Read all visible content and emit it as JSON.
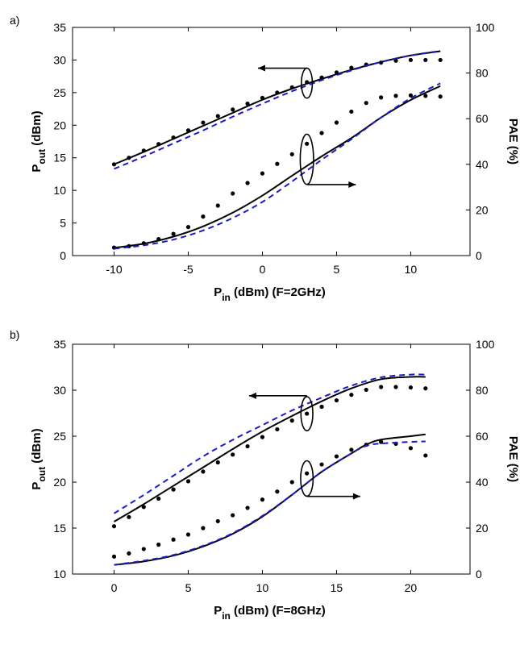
{
  "chart_data": [
    {
      "type": "line",
      "panel_label": "a)",
      "xlabel": {
        "main": "P",
        "sub": "in",
        "rest": " (dBm) (F=2GHz)"
      },
      "ylabel_left": {
        "main": "P",
        "sub": "out",
        "rest": " (dBm)"
      },
      "ylabel_right": "PAE (%)",
      "xlim": [
        -12.8,
        14
      ],
      "ylim_left": [
        0,
        35
      ],
      "ylim_right": [
        0,
        100
      ],
      "xticks": [
        -10,
        -5,
        0,
        5,
        10
      ],
      "yticks_left": [
        0,
        5,
        10,
        15,
        20,
        25,
        30,
        35
      ],
      "yticks_right": [
        0,
        20,
        40,
        60,
        80,
        100
      ],
      "grid": false,
      "series": [
        {
          "name": "Pout measured",
          "axis": "left",
          "style": "dots",
          "x": [
            -10,
            -9,
            -8,
            -7,
            -6,
            -5,
            -4,
            -3,
            -2,
            -1,
            0,
            1,
            2,
            3,
            4,
            5,
            6,
            7,
            8,
            9,
            10,
            11,
            12
          ],
          "y": [
            14.0,
            15.0,
            16.1,
            17.1,
            18.1,
            19.2,
            20.4,
            21.4,
            22.4,
            23.3,
            24.2,
            25.0,
            25.8,
            26.6,
            27.3,
            28.1,
            28.8,
            29.3,
            29.6,
            29.9,
            30.0,
            30.0,
            30.0
          ]
        },
        {
          "name": "Pout model (solid)",
          "axis": "left",
          "style": "solid",
          "x": [
            -10,
            -8,
            -6,
            -4,
            -2,
            0,
            2,
            4,
            6,
            8,
            10,
            12
          ],
          "y": [
            14.0,
            15.9,
            17.9,
            19.9,
            21.9,
            23.9,
            25.6,
            27.1,
            28.5,
            29.7,
            30.7,
            31.35
          ]
        },
        {
          "name": "Pout model (dashed)",
          "axis": "left",
          "style": "dashed",
          "x": [
            -10,
            -8,
            -6,
            -4,
            -2,
            0,
            2,
            4,
            6,
            8,
            10,
            12
          ],
          "y": [
            13.3,
            15.2,
            17.2,
            19.2,
            21.3,
            23.3,
            25.2,
            26.9,
            28.4,
            29.7,
            30.7,
            31.4
          ]
        },
        {
          "name": "PAE measured",
          "axis": "right",
          "style": "dots",
          "x": [
            -10,
            -9,
            -8,
            -7,
            -6,
            -5,
            -4,
            -3,
            -2,
            -1,
            0,
            1,
            2,
            3,
            4,
            5,
            6,
            7,
            8,
            9,
            10,
            11,
            12
          ],
          "y": [
            3.5,
            4.1,
            5.4,
            7.2,
            9.5,
            12.5,
            17.1,
            21.9,
            27.2,
            31.8,
            36.0,
            40.2,
            44.4,
            49.0,
            53.7,
            58.3,
            63.1,
            66.9,
            69.3,
            70.0,
            70.2,
            70.0,
            69.7
          ]
        },
        {
          "name": "PAE model (solid)",
          "axis": "right",
          "style": "solid",
          "x": [
            -10,
            -8,
            -6,
            -4,
            -2,
            0,
            2,
            4,
            6,
            8,
            10,
            12
          ],
          "y": [
            3.4,
            5.2,
            8.3,
            12.8,
            18.8,
            26.3,
            35.0,
            43.5,
            51.5,
            60.5,
            68.2,
            74.3
          ]
        },
        {
          "name": "PAE model (dashed)",
          "axis": "right",
          "style": "dashed",
          "x": [
            -10,
            -8,
            -6,
            -4,
            -2,
            0,
            2,
            4,
            6,
            8,
            10,
            12
          ],
          "y": [
            3.0,
            4.5,
            7.0,
            11.0,
            16.5,
            23.5,
            32.5,
            42.0,
            51.0,
            60.5,
            69.0,
            75.5
          ]
        }
      ],
      "annotations": [
        {
          "axis": "left",
          "ellipse": {
            "cx": 3,
            "cy": 26.45,
            "rx": 0.37,
            "ry": 2.3
          },
          "arrow": {
            "from": [
              3,
              28.75
            ],
            "to": [
              -0.3,
              28.75
            ]
          }
        },
        {
          "axis": "right",
          "ellipse": {
            "cx": 3,
            "cy": 42.2,
            "rx": 0.45,
            "ry": 11
          },
          "arrow": {
            "from": [
              3,
              31.1
            ],
            "to": [
              6.3,
              31.1
            ]
          }
        }
      ]
    },
    {
      "type": "line",
      "panel_label": "b)",
      "xlabel": {
        "main": "P",
        "sub": "in",
        "rest": " (dBm) (F=8GHz)"
      },
      "ylabel_left": {
        "main": "P",
        "sub": "out",
        "rest": " (dBm)"
      },
      "ylabel_right": "PAE (%)",
      "xlim": [
        -2.8,
        24
      ],
      "ylim_left": [
        10,
        35
      ],
      "ylim_right": [
        0,
        100
      ],
      "xticks": [
        0,
        5,
        10,
        15,
        20
      ],
      "yticks_left": [
        10,
        15,
        20,
        25,
        30,
        35
      ],
      "yticks_right": [
        0,
        20,
        40,
        60,
        80,
        100
      ],
      "grid": false,
      "series": [
        {
          "name": "Pout measured",
          "axis": "left",
          "style": "dots",
          "x": [
            0,
            1,
            2,
            3,
            4,
            5,
            6,
            7,
            8,
            9,
            10,
            11,
            12,
            13,
            14,
            15,
            16,
            17,
            18,
            19,
            20,
            21
          ],
          "y": [
            15.2,
            16.2,
            17.3,
            18.2,
            19.2,
            20.1,
            21.15,
            22.15,
            23.0,
            23.9,
            24.9,
            25.75,
            26.7,
            27.45,
            28.2,
            28.9,
            29.5,
            30.05,
            30.35,
            30.35,
            30.3,
            30.2
          ]
        },
        {
          "name": "Pout model (solid)",
          "axis": "left",
          "style": "solid",
          "x": [
            0,
            2,
            4,
            6,
            8,
            10,
            12,
            14,
            16,
            18,
            20,
            21
          ],
          "y": [
            15.7,
            17.6,
            19.6,
            21.6,
            23.6,
            25.5,
            27.2,
            28.8,
            30.2,
            31.2,
            31.45,
            31.45
          ]
        },
        {
          "name": "Pout model (dashed)",
          "axis": "left",
          "style": "dashed",
          "x": [
            0,
            2,
            4,
            6,
            8,
            10,
            12,
            14,
            16,
            18,
            20,
            21
          ],
          "y": [
            16.6,
            18.6,
            20.7,
            22.8,
            24.6,
            26.2,
            27.8,
            29.2,
            30.5,
            31.4,
            31.7,
            31.7
          ]
        },
        {
          "name": "PAE measured",
          "axis": "right",
          "style": "dots",
          "x": [
            0,
            1,
            2,
            3,
            4,
            5,
            6,
            7,
            8,
            9,
            10,
            11,
            12,
            13,
            14,
            15,
            16,
            17,
            18,
            19,
            20,
            21
          ],
          "y": [
            7.6,
            9.0,
            10.9,
            12.8,
            15.0,
            17.2,
            20.0,
            23.0,
            25.6,
            28.8,
            32.4,
            35.9,
            40.0,
            43.8,
            47.7,
            51.2,
            54.1,
            56.3,
            57.5,
            56.7,
            54.8,
            51.6
          ]
        },
        {
          "name": "PAE model (solid)",
          "axis": "right",
          "style": "solid",
          "x": [
            0,
            2,
            4,
            6,
            8,
            10,
            12,
            14,
            16,
            17,
            18,
            20,
            21
          ],
          "y": [
            4.0,
            5.5,
            8.0,
            12.0,
            17.5,
            25.0,
            34.5,
            44.5,
            52.5,
            56.3,
            58.5,
            60.0,
            60.8
          ]
        },
        {
          "name": "PAE model (dashed)",
          "axis": "right",
          "style": "dashed",
          "x": [
            0,
            2,
            4,
            6,
            8,
            10,
            12,
            14,
            16,
            17,
            18,
            20,
            21
          ],
          "y": [
            4.0,
            5.8,
            8.3,
            12.3,
            17.8,
            25.3,
            34.5,
            44.5,
            52.5,
            55.8,
            56.8,
            57.5,
            57.7
          ]
        }
      ],
      "annotations": [
        {
          "axis": "left",
          "ellipse": {
            "cx": 13,
            "cy": 27.45,
            "rx": 0.4,
            "ry": 1.85
          },
          "arrow": {
            "from": [
              13,
              29.4
            ],
            "to": [
              9.1,
              29.4
            ]
          }
        },
        {
          "axis": "right",
          "ellipse": {
            "cx": 13,
            "cy": 41.6,
            "rx": 0.42,
            "ry": 7.7
          },
          "arrow": {
            "from": [
              13,
              33.8
            ],
            "to": [
              16.6,
              33.8
            ]
          }
        }
      ]
    }
  ],
  "colors": {
    "measured": "#000000",
    "solid": "#000000",
    "dashed": "#1a1acc"
  }
}
